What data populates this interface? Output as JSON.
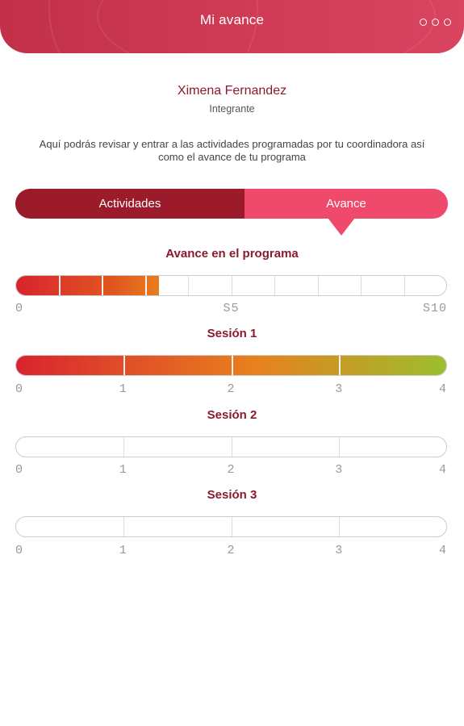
{
  "header": {
    "title": "Mi avance",
    "menu_icon": "more-dots-icon"
  },
  "user": {
    "name": "Ximena Fernandez",
    "role": "Integrante"
  },
  "description": "Aquí podrás revisar y entrar a las actividades programadas por tu coordinadora así como el avance de tu programa",
  "tabs": [
    {
      "label": "Actividades",
      "active": false
    },
    {
      "label": "Avance",
      "active": true
    }
  ],
  "program": {
    "title": "Avance en el programa",
    "segments": 10,
    "completed_fraction": 0.33,
    "ticks": [
      "0",
      "S5",
      "S10"
    ]
  },
  "sessions": [
    {
      "title": "Sesión 1",
      "segments": 4,
      "completed_fraction": 1.0,
      "ticks": [
        "0",
        "1",
        "2",
        "3",
        "4"
      ]
    },
    {
      "title": "Sesión 2",
      "segments": 4,
      "completed_fraction": 0.0,
      "ticks": [
        "0",
        "1",
        "2",
        "3",
        "4"
      ]
    },
    {
      "title": "Sesión 3",
      "segments": 4,
      "completed_fraction": 0.0,
      "ticks": [
        "0",
        "1",
        "2",
        "3",
        "4"
      ]
    }
  ],
  "colors": {
    "brand_dark": "#9b1b2a",
    "brand_pink": "#ef4a6c",
    "progress_start": "#d9232f",
    "progress_mid": "#e8801e",
    "progress_end": "#9abf2e"
  }
}
